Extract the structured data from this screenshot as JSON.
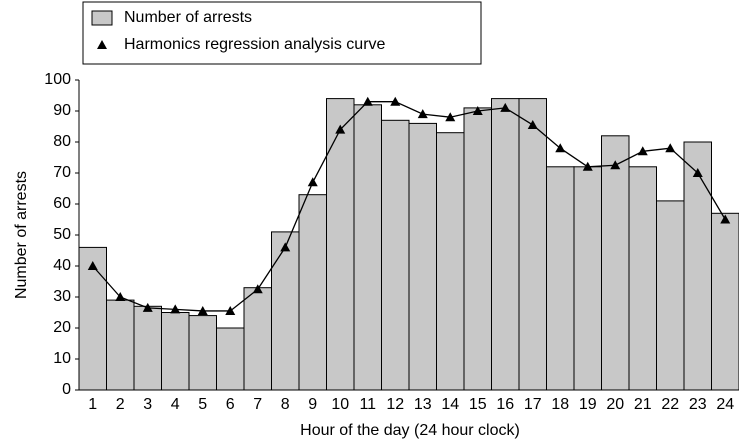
{
  "chart_data": {
    "type": "bar",
    "xlabel": "Hour of the day (24 hour clock)",
    "ylabel": "Number of arrests",
    "categories": [
      "1",
      "2",
      "3",
      "4",
      "5",
      "6",
      "7",
      "8",
      "9",
      "10",
      "11",
      "12",
      "13",
      "14",
      "15",
      "16",
      "17",
      "18",
      "19",
      "20",
      "21",
      "22",
      "23",
      "24"
    ],
    "series": [
      {
        "name": "Number of arrests",
        "type": "bar",
        "color": "#c8c8c8",
        "values": [
          46,
          29,
          27,
          25,
          24,
          20,
          33,
          51,
          63,
          94,
          92,
          87,
          86,
          83,
          91,
          94,
          94,
          72,
          72,
          82,
          72,
          61,
          80,
          57
        ]
      },
      {
        "name": "Harmonics regression analysis curve",
        "type": "line",
        "color": "#000000",
        "values": [
          40,
          30,
          26.5,
          26,
          25.5,
          25.5,
          32.5,
          46,
          67,
          84,
          93,
          93,
          89,
          88,
          90,
          91,
          85.5,
          78,
          72,
          72.5,
          77,
          78,
          70,
          55
        ]
      }
    ],
    "ylim": [
      0,
      100
    ],
    "yticks": [
      0,
      10,
      20,
      30,
      40,
      50,
      60,
      70,
      80,
      90,
      100
    ],
    "grid": false
  }
}
